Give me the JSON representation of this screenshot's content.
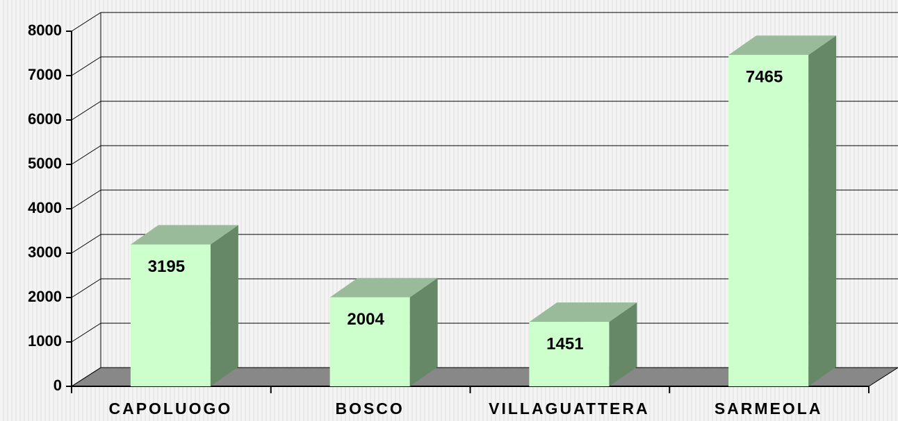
{
  "chart_data": {
    "type": "bar",
    "categories": [
      "CAPOLUOGO",
      "BOSCO",
      "VILLAGUATTERA",
      "SARMEOLA"
    ],
    "values": [
      3195,
      2004,
      1451,
      7465
    ],
    "color": "#ccffcc",
    "ylim": [
      0,
      8000
    ],
    "yticks": [
      0,
      1000,
      2000,
      3000,
      4000,
      5000,
      6000,
      7000,
      8000
    ],
    "grid": true
  }
}
